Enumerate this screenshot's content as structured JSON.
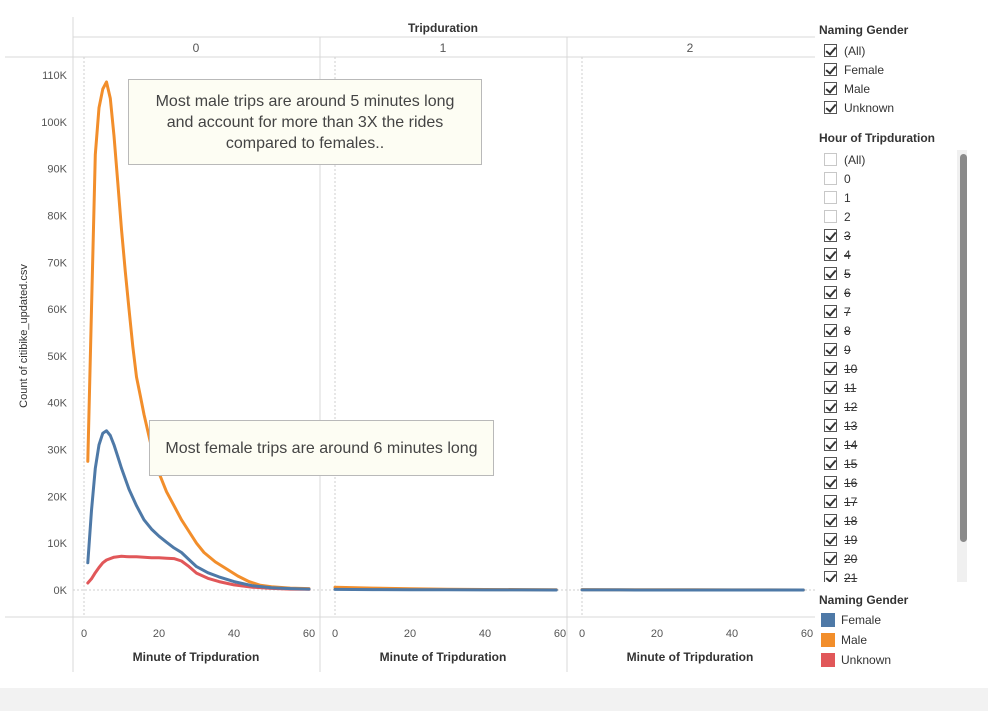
{
  "chart_data": {
    "type": "line",
    "title": "Tripduration",
    "panels": [
      "0",
      "1",
      "2"
    ],
    "xlabel": "Minute of Tripduration",
    "ylabel": "Count of citibike_updated.csv",
    "ylim": [
      0,
      115000
    ],
    "xlim": [
      0,
      60
    ],
    "yticks": [
      "0K",
      "10K",
      "20K",
      "30K",
      "40K",
      "50K",
      "60K",
      "70K",
      "80K",
      "90K",
      "100K",
      "110K"
    ],
    "ytick_values": [
      0,
      10000,
      20000,
      30000,
      40000,
      50000,
      60000,
      70000,
      80000,
      90000,
      100000,
      110000
    ],
    "xticks": [
      "0",
      "20",
      "40",
      "60"
    ],
    "xtick_values": [
      0,
      20,
      40,
      60
    ],
    "series": [
      {
        "name": "Male",
        "color": "#f28e2b",
        "panel": "0",
        "x": [
          1,
          2,
          3,
          4,
          5,
          6,
          7,
          8,
          9,
          10,
          11,
          12,
          13,
          14,
          15,
          16,
          18,
          20,
          22,
          24,
          26,
          28,
          30,
          32,
          35,
          38,
          41,
          44,
          47,
          50,
          55,
          60
        ],
        "y": [
          27500,
          60000,
          93000,
          103000,
          107000,
          108500,
          105000,
          97000,
          87000,
          77000,
          68000,
          60000,
          52000,
          45500,
          41500,
          37500,
          30500,
          25000,
          21000,
          18000,
          15000,
          12500,
          10000,
          8000,
          6000,
          4500,
          3000,
          1800,
          1000,
          700,
          400,
          300
        ]
      },
      {
        "name": "Female",
        "color": "#4e79a7",
        "panel": "0",
        "x": [
          1,
          2,
          3,
          4,
          5,
          6,
          7,
          8,
          9,
          10,
          12,
          14,
          16,
          18,
          20,
          22,
          24,
          26,
          28,
          30,
          33,
          36,
          40,
          45,
          50,
          55,
          60
        ],
        "y": [
          5800,
          17000,
          26000,
          31000,
          33500,
          34000,
          33000,
          31000,
          28500,
          26000,
          21500,
          18000,
          15000,
          13000,
          11500,
          10200,
          9000,
          8000,
          6500,
          5000,
          3700,
          2800,
          1800,
          900,
          500,
          300,
          200
        ]
      },
      {
        "name": "Unknown",
        "color": "#e15759",
        "panel": "0",
        "x": [
          1,
          2,
          3,
          4,
          5,
          6,
          8,
          10,
          12,
          14,
          16,
          18,
          20,
          22,
          24,
          26,
          28,
          30,
          33,
          36,
          40,
          45,
          50,
          55,
          60
        ],
        "y": [
          1500,
          2400,
          3700,
          4800,
          5800,
          6400,
          7000,
          7200,
          7100,
          7100,
          7000,
          6900,
          6900,
          6800,
          6700,
          6200,
          5000,
          3600,
          2500,
          1800,
          1100,
          600,
          350,
          200,
          150
        ]
      },
      {
        "name": "Male",
        "color": "#f28e2b",
        "panel": "1",
        "x": [
          0,
          10,
          20,
          30,
          40,
          50,
          59
        ],
        "y": [
          600,
          400,
          250,
          150,
          100,
          80,
          50
        ]
      },
      {
        "name": "Female",
        "color": "#4e79a7",
        "panel": "1",
        "x": [
          0,
          10,
          20,
          30,
          40,
          50,
          59
        ],
        "y": [
          120,
          80,
          60,
          40,
          30,
          20,
          10
        ]
      },
      {
        "name": "Male",
        "color": "#f28e2b",
        "panel": "2",
        "x": [
          0,
          10,
          20,
          30,
          40,
          50,
          59
        ],
        "y": [
          80,
          60,
          50,
          40,
          30,
          20,
          10
        ]
      },
      {
        "name": "Female",
        "color": "#4e79a7",
        "panel": "2",
        "x": [
          0,
          10,
          20,
          30,
          40,
          50,
          59
        ],
        "y": [
          20,
          15,
          10,
          10,
          10,
          10,
          10
        ]
      }
    ],
    "annotations": [
      {
        "id": "male-note",
        "text_lines": [
          "Most male trips are around 5 minutes long",
          "and account for more than 3X the rides",
          "compared to females.."
        ]
      },
      {
        "id": "female-note",
        "text_lines": [
          "Most female trips are around 6 minutes long"
        ]
      }
    ],
    "grid": false,
    "legend_position": "right"
  },
  "filters": {
    "gender_filter": {
      "title": "Naming Gender",
      "items": [
        {
          "label": "(All)",
          "checked": true
        },
        {
          "label": "Female",
          "checked": true
        },
        {
          "label": "Male",
          "checked": true
        },
        {
          "label": "Unknown",
          "checked": true
        }
      ]
    },
    "hour_filter": {
      "title": "Hour of Tripduration",
      "items": [
        {
          "label": "(All)",
          "checked": false,
          "strike": false
        },
        {
          "label": "0",
          "checked": false,
          "strike": false
        },
        {
          "label": "1",
          "checked": false,
          "strike": false
        },
        {
          "label": "2",
          "checked": false,
          "strike": false
        },
        {
          "label": "3",
          "checked": true,
          "strike": true
        },
        {
          "label": "4",
          "checked": true,
          "strike": true
        },
        {
          "label": "5",
          "checked": true,
          "strike": true
        },
        {
          "label": "6",
          "checked": true,
          "strike": true
        },
        {
          "label": "7",
          "checked": true,
          "strike": true
        },
        {
          "label": "8",
          "checked": true,
          "strike": true
        },
        {
          "label": "9",
          "checked": true,
          "strike": true
        },
        {
          "label": "10",
          "checked": true,
          "strike": true
        },
        {
          "label": "11",
          "checked": true,
          "strike": true
        },
        {
          "label": "12",
          "checked": true,
          "strike": true
        },
        {
          "label": "13",
          "checked": true,
          "strike": true
        },
        {
          "label": "14",
          "checked": true,
          "strike": true
        },
        {
          "label": "15",
          "checked": true,
          "strike": true
        },
        {
          "label": "16",
          "checked": true,
          "strike": true
        },
        {
          "label": "17",
          "checked": true,
          "strike": true
        },
        {
          "label": "18",
          "checked": true,
          "strike": true
        },
        {
          "label": "19",
          "checked": true,
          "strike": true
        },
        {
          "label": "20",
          "checked": true,
          "strike": true
        },
        {
          "label": "21",
          "checked": true,
          "strike": true
        }
      ]
    }
  },
  "legend": {
    "title": "Naming Gender",
    "items": [
      {
        "label": "Female",
        "color": "#4e79a7"
      },
      {
        "label": "Male",
        "color": "#f28e2b"
      },
      {
        "label": "Unknown",
        "color": "#e15759"
      }
    ]
  }
}
